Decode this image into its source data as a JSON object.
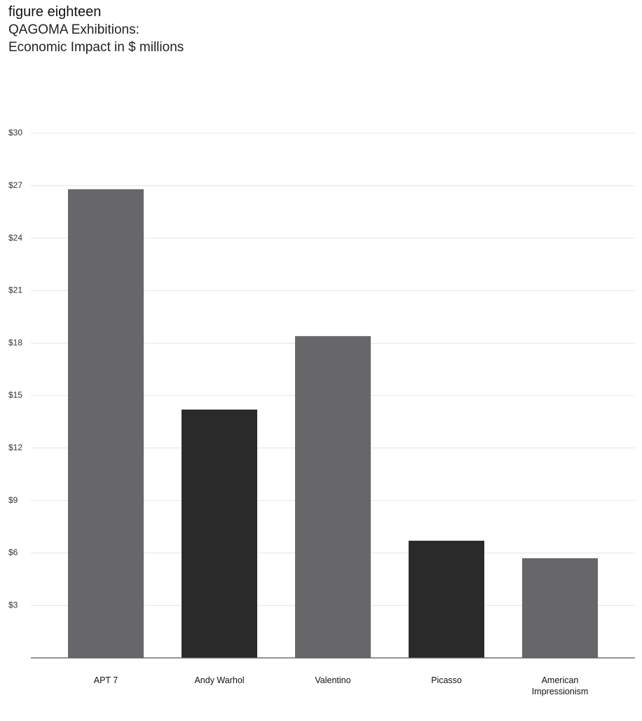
{
  "chart_data": {
    "type": "bar",
    "title": "figure eighteen",
    "subtitle_lines": [
      "QAGOMA Exhibitions:",
      "Economic Impact in $ millions"
    ],
    "categories": [
      "APT 7",
      "Andy Warhol",
      "Valentino",
      "Picasso",
      "American Impressionism"
    ],
    "values": [
      26.8,
      14.2,
      18.4,
      6.7,
      5.7
    ],
    "colors": [
      "#676669",
      "#2a2a2a",
      "#676669",
      "#2a2a2a",
      "#676669"
    ],
    "ylim": [
      0,
      30
    ],
    "yticks": [
      {
        "value": 3,
        "label": "$3"
      },
      {
        "value": 6,
        "label": "$6"
      },
      {
        "value": 9,
        "label": "$9"
      },
      {
        "value": 12,
        "label": "$12"
      },
      {
        "value": 15,
        "label": "$15"
      },
      {
        "value": 18,
        "label": "$18"
      },
      {
        "value": 21,
        "label": "$21"
      },
      {
        "value": 24,
        "label": "$24"
      },
      {
        "value": 27,
        "label": "$27"
      },
      {
        "value": 30,
        "label": "$30"
      }
    ],
    "grid": true
  }
}
